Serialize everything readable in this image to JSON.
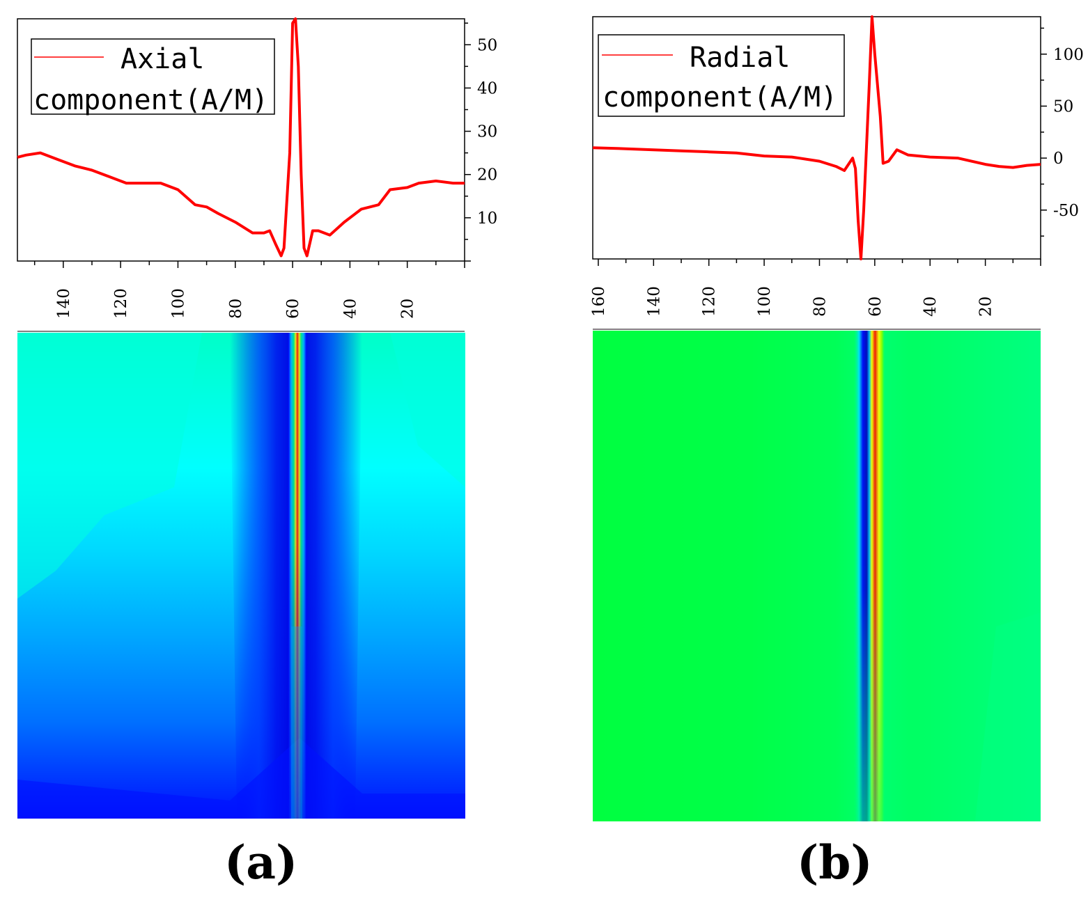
{
  "chart_data": [
    {
      "panel_label": "(a)",
      "type": "line",
      "legend": {
        "line1": "Axial",
        "line2": "component(A/M)",
        "placement": "top-left"
      },
      "series_color": "#ff0000",
      "x_ticks": [
        "140",
        "120",
        "100",
        "80",
        "60",
        "40",
        "20"
      ],
      "x_tick_values": [
        140,
        120,
        100,
        80,
        60,
        40,
        20
      ],
      "x_range": [
        156,
        0
      ],
      "y_ticks": [
        "10",
        "20",
        "30",
        "40",
        "50"
      ],
      "y_tick_values": [
        10,
        20,
        30,
        40,
        50
      ],
      "y_range": [
        0,
        56
      ],
      "y_axis_side": "right",
      "x": [
        156,
        153,
        148,
        142,
        136,
        130,
        124,
        118,
        112,
        106,
        100,
        94,
        90,
        86,
        80,
        74,
        70,
        68,
        66,
        64,
        63,
        61,
        60,
        59,
        58,
        57,
        56,
        55,
        53,
        51,
        47,
        42,
        36,
        30,
        26,
        20,
        16,
        10,
        4,
        0
      ],
      "values": [
        24,
        24.5,
        25,
        23.5,
        22,
        21,
        19.5,
        18,
        18,
        18,
        16.5,
        13,
        12.5,
        11,
        9,
        6.5,
        6.5,
        7,
        4,
        1.2,
        3,
        25,
        55,
        56,
        45,
        20,
        3,
        1.2,
        7,
        7,
        6,
        9,
        12,
        13,
        16.5,
        17,
        18,
        18.5,
        18,
        18
      ],
      "heatmap": {
        "colormap": "jet",
        "peak_x": 58,
        "description_scale": "axial"
      }
    },
    {
      "panel_label": "(b)",
      "type": "line",
      "legend": {
        "line1": "Radial",
        "line2": "component(A/M)",
        "placement": "top-left"
      },
      "series_color": "#ff0000",
      "x_ticks": [
        "160",
        "140",
        "120",
        "100",
        "80",
        "60",
        "40",
        "20"
      ],
      "x_tick_values": [
        160,
        140,
        120,
        100,
        80,
        60,
        40,
        20
      ],
      "x_range": [
        162,
        0
      ],
      "y_ticks": [
        "100",
        "50",
        "0",
        "-50"
      ],
      "y_tick_values": [
        100,
        50,
        0,
        -50
      ],
      "y_range": [
        -97,
        136
      ],
      "y_axis_side": "right",
      "x": [
        162,
        150,
        140,
        130,
        120,
        110,
        100,
        90,
        80,
        74,
        71,
        68,
        67,
        66,
        65,
        64,
        62,
        61,
        60,
        58,
        57,
        55,
        52,
        48,
        40,
        30,
        20,
        15,
        10,
        5,
        0
      ],
      "values": [
        10,
        9,
        8,
        7,
        6,
        5,
        2,
        1,
        -3,
        -8,
        -12,
        0,
        -10,
        -60,
        -97,
        -50,
        70,
        136,
        100,
        40,
        -5,
        -3,
        8,
        3,
        1,
        0,
        -6,
        -8,
        -9,
        -7,
        -6
      ],
      "heatmap": {
        "colormap": "jet",
        "negative_x": 65,
        "positive_x": 61,
        "description_scale": "radial"
      }
    }
  ]
}
